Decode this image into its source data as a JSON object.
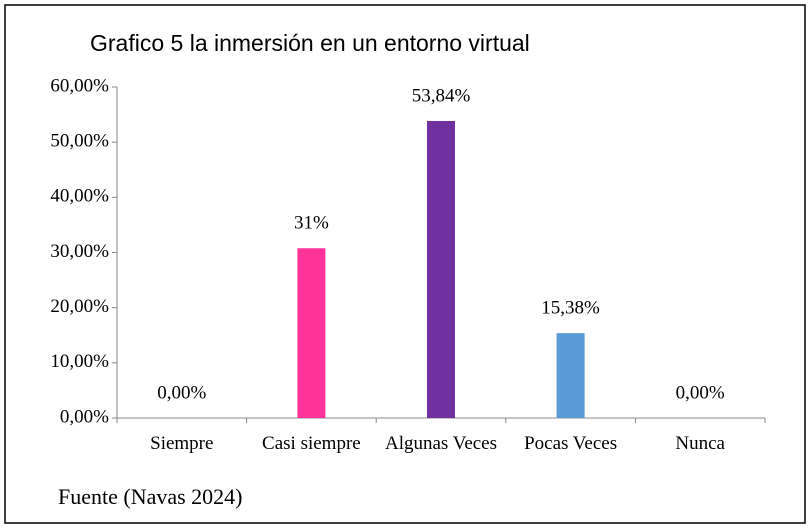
{
  "chart_data": {
    "type": "bar",
    "title": "Grafico 5 la inmersión en un entorno virtual",
    "categories": [
      "Siempre",
      "Casi siempre",
      "Algunas Veces",
      "Pocas Veces",
      "Nunca"
    ],
    "values": [
      0,
      30.77,
      53.84,
      15.38,
      0
    ],
    "value_labels": [
      "0,00%",
      "31%",
      "53,84%",
      "15,38%",
      "0,00%"
    ],
    "colors": [
      "#4f81bd",
      "#ff3399",
      "#7030a0",
      "#5b9bd5",
      "#4f81bd"
    ],
    "ylim": [
      0,
      60
    ],
    "yticks": [
      {
        "value": 0,
        "label": "0,00%"
      },
      {
        "value": 10,
        "label": "10,00%"
      },
      {
        "value": 20,
        "label": "20,00%"
      },
      {
        "value": 30,
        "label": "30,00%"
      },
      {
        "value": 40,
        "label": "40,00%"
      },
      {
        "value": 50,
        "label": "50,00%"
      },
      {
        "value": 60,
        "label": "60,00%"
      }
    ],
    "grid": false,
    "source": "Fuente (Navas 2024)"
  }
}
